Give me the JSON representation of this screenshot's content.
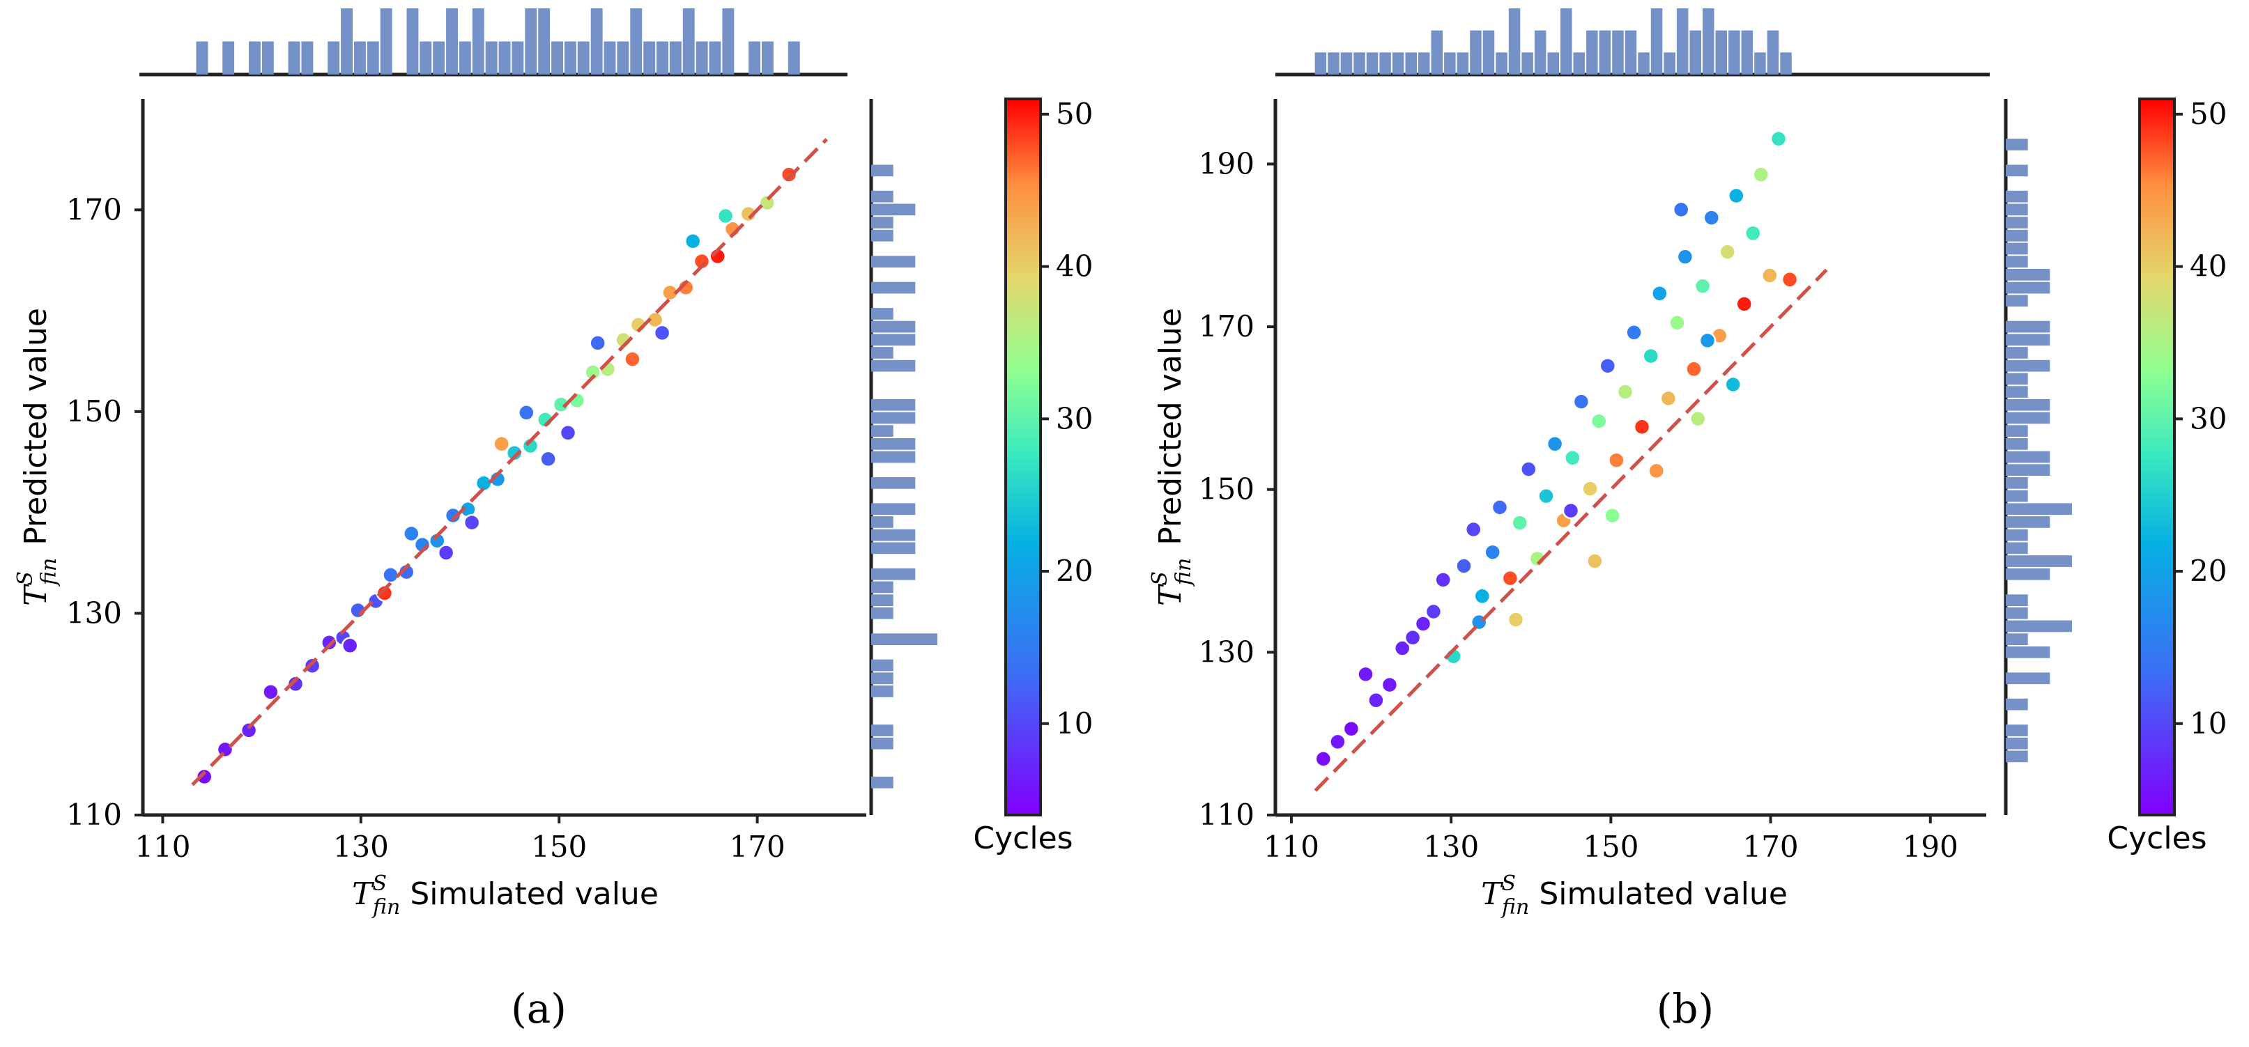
{
  "figure": {
    "panels": [
      {
        "label": "(a)",
        "x_symbol": "T",
        "x_sup": "S",
        "x_sub": "fin",
        "x_text": "Simulated value",
        "y_symbol": "T",
        "y_sup": "S",
        "y_sub": "fin",
        "y_text": "Predicted value",
        "colorbar_title": "Cycles"
      },
      {
        "label": "(b)",
        "x_symbol": "T",
        "x_sup": "S",
        "x_sub": "fin",
        "x_text": "Simulated value",
        "y_symbol": "T",
        "y_sup": "S",
        "y_sub": "fin",
        "y_text": "Predicted value",
        "colorbar_title": "Cycles"
      }
    ]
  },
  "chart_data": [
    {
      "type": "scatter",
      "title": "(a)",
      "xlabel": "T^S_fin Simulated value",
      "ylabel": "T^S_fin Predicted value",
      "xlim": [
        108,
        181
      ],
      "ylim": [
        110,
        181
      ],
      "xticks": [
        110,
        130,
        150,
        170
      ],
      "yticks": [
        110,
        130,
        150,
        170
      ],
      "reference_line": {
        "style": "dashed",
        "color": "#d0504a",
        "from": [
          113,
          113
        ],
        "to": [
          177,
          177
        ]
      },
      "color_by": "Cycles",
      "colorbar": {
        "title": "Cycles",
        "range": [
          4,
          51
        ],
        "ticks": [
          10,
          20,
          30,
          40,
          50
        ],
        "colormap": "rainbow"
      },
      "marginal_top": {
        "type": "histogram",
        "color": "#7592c8",
        "bins": 55
      },
      "marginal_right": {
        "type": "histogram",
        "color": "#7592c8",
        "bins": 55
      },
      "points": [
        [
          114.2,
          113.8,
          5
        ],
        [
          116.3,
          116.5,
          6
        ],
        [
          118.7,
          118.4,
          7
        ],
        [
          120.9,
          122.2,
          6
        ],
        [
          123.4,
          123.0,
          8
        ],
        [
          125.1,
          124.8,
          9
        ],
        [
          126.8,
          127.1,
          7
        ],
        [
          128.2,
          127.6,
          10
        ],
        [
          129.7,
          130.3,
          12
        ],
        [
          131.5,
          131.2,
          11
        ],
        [
          133.0,
          133.8,
          14
        ],
        [
          134.6,
          134.1,
          13
        ],
        [
          136.2,
          136.8,
          16
        ],
        [
          137.7,
          137.2,
          18
        ],
        [
          139.3,
          139.7,
          15
        ],
        [
          140.8,
          140.3,
          20
        ],
        [
          142.4,
          142.9,
          22
        ],
        [
          143.8,
          143.3,
          19
        ],
        [
          145.5,
          145.9,
          24
        ],
        [
          147.1,
          146.6,
          26
        ],
        [
          148.6,
          149.2,
          28
        ],
        [
          150.2,
          150.7,
          30
        ],
        [
          151.8,
          151.1,
          32
        ],
        [
          153.4,
          153.9,
          34
        ],
        [
          154.9,
          154.2,
          36
        ],
        [
          156.5,
          157.1,
          38
        ],
        [
          158.0,
          158.6,
          40
        ],
        [
          159.7,
          159.1,
          42
        ],
        [
          161.2,
          161.8,
          44
        ],
        [
          162.8,
          162.3,
          46
        ],
        [
          164.4,
          164.9,
          48
        ],
        [
          166.0,
          165.4,
          50
        ],
        [
          167.5,
          168.1,
          45
        ],
        [
          169.1,
          169.6,
          41
        ],
        [
          171.0,
          170.7,
          37
        ],
        [
          173.2,
          173.5,
          48
        ],
        [
          135.1,
          137.9,
          16
        ],
        [
          141.2,
          139.0,
          10
        ],
        [
          148.9,
          145.3,
          12
        ],
        [
          153.9,
          156.8,
          13
        ],
        [
          160.4,
          157.8,
          11
        ],
        [
          146.7,
          149.9,
          14
        ],
        [
          138.6,
          136.0,
          9
        ],
        [
          128.9,
          126.8,
          7
        ],
        [
          163.5,
          166.9,
          22
        ],
        [
          157.4,
          155.2,
          47
        ],
        [
          144.2,
          146.8,
          44
        ],
        [
          132.4,
          132.0,
          49
        ],
        [
          150.9,
          147.9,
          10
        ],
        [
          166.8,
          169.4,
          27
        ]
      ]
    },
    {
      "type": "scatter",
      "title": "(b)",
      "xlabel": "T^S_fin Simulated value",
      "ylabel": "T^S_fin Predicted value",
      "xlim": [
        108,
        197
      ],
      "ylim": [
        110,
        198
      ],
      "xticks": [
        110,
        130,
        150,
        170,
        190
      ],
      "yticks": [
        110,
        130,
        150,
        170,
        190
      ],
      "reference_line": {
        "style": "dashed",
        "color": "#d0504a",
        "from": [
          113,
          113
        ],
        "to": [
          177,
          177
        ]
      },
      "color_by": "Cycles",
      "colorbar": {
        "title": "Cycles",
        "range": [
          4,
          51
        ],
        "ticks": [
          10,
          20,
          30,
          40,
          50
        ],
        "colormap": "rainbow"
      },
      "marginal_top": {
        "type": "histogram",
        "color": "#7592c8",
        "bins": 55
      },
      "marginal_right": {
        "type": "histogram",
        "color": "#7592c8",
        "bins": 55
      },
      "points": [
        [
          114.0,
          116.9,
          5
        ],
        [
          115.8,
          119.0,
          6
        ],
        [
          117.5,
          120.6,
          5
        ],
        [
          119.3,
          127.3,
          6
        ],
        [
          120.6,
          124.1,
          7
        ],
        [
          122.3,
          126.0,
          6
        ],
        [
          123.9,
          130.5,
          7
        ],
        [
          125.2,
          131.8,
          8
        ],
        [
          126.5,
          133.5,
          7
        ],
        [
          127.8,
          135.0,
          9
        ],
        [
          129.0,
          138.9,
          8
        ],
        [
          130.3,
          129.5,
          26
        ],
        [
          131.6,
          140.6,
          12
        ],
        [
          132.8,
          145.1,
          10
        ],
        [
          133.9,
          136.9,
          22
        ],
        [
          135.2,
          142.3,
          16
        ],
        [
          136.1,
          147.8,
          13
        ],
        [
          137.4,
          139.1,
          48
        ],
        [
          138.6,
          145.9,
          30
        ],
        [
          139.7,
          152.5,
          11
        ],
        [
          140.8,
          141.5,
          35
        ],
        [
          141.9,
          149.2,
          24
        ],
        [
          143.0,
          155.6,
          18
        ],
        [
          144.1,
          146.2,
          44
        ],
        [
          145.2,
          153.9,
          28
        ],
        [
          146.3,
          160.8,
          14
        ],
        [
          147.4,
          150.1,
          40
        ],
        [
          148.5,
          158.4,
          32
        ],
        [
          149.6,
          165.2,
          12
        ],
        [
          150.7,
          153.6,
          46
        ],
        [
          151.8,
          162.0,
          36
        ],
        [
          152.9,
          169.3,
          15
        ],
        [
          153.9,
          157.7,
          49
        ],
        [
          155.0,
          166.4,
          26
        ],
        [
          156.1,
          174.1,
          20
        ],
        [
          157.2,
          161.2,
          42
        ],
        [
          158.3,
          170.5,
          34
        ],
        [
          159.3,
          178.6,
          18
        ],
        [
          160.4,
          164.8,
          47
        ],
        [
          161.5,
          175.0,
          30
        ],
        [
          162.6,
          183.4,
          16
        ],
        [
          163.6,
          168.9,
          44
        ],
        [
          164.6,
          179.2,
          38
        ],
        [
          165.7,
          186.1,
          22
        ],
        [
          166.7,
          172.8,
          50
        ],
        [
          167.8,
          181.5,
          28
        ],
        [
          168.8,
          188.7,
          35
        ],
        [
          169.9,
          176.3,
          42
        ],
        [
          171.0,
          193.1,
          27
        ],
        [
          172.4,
          175.8,
          48
        ],
        [
          145.0,
          147.4,
          9
        ],
        [
          150.2,
          146.8,
          33
        ],
        [
          155.7,
          152.3,
          45
        ],
        [
          160.9,
          158.7,
          36
        ],
        [
          165.3,
          162.9,
          23
        ],
        [
          138.1,
          134.0,
          40
        ],
        [
          133.5,
          133.7,
          18
        ],
        [
          158.8,
          184.4,
          14
        ],
        [
          162.1,
          168.3,
          19
        ],
        [
          148.0,
          141.2,
          41
        ]
      ]
    }
  ]
}
